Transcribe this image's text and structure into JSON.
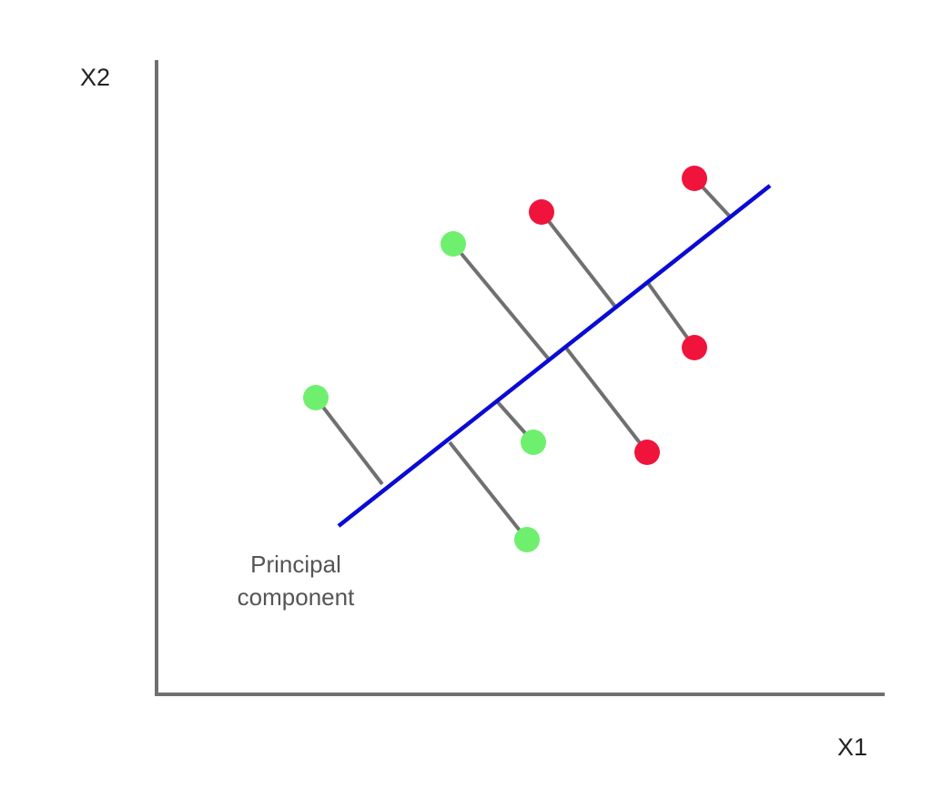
{
  "axes": {
    "x_label": "X1",
    "y_label": "X2",
    "axis_color": "#707070"
  },
  "principal_component": {
    "label_line1": "Principal",
    "label_line2": "component",
    "line_color": "#0a0ad6"
  },
  "projection_line_color": "#707070",
  "point_groups": {
    "green": "#6ef06e",
    "red": "#f0143c"
  }
}
